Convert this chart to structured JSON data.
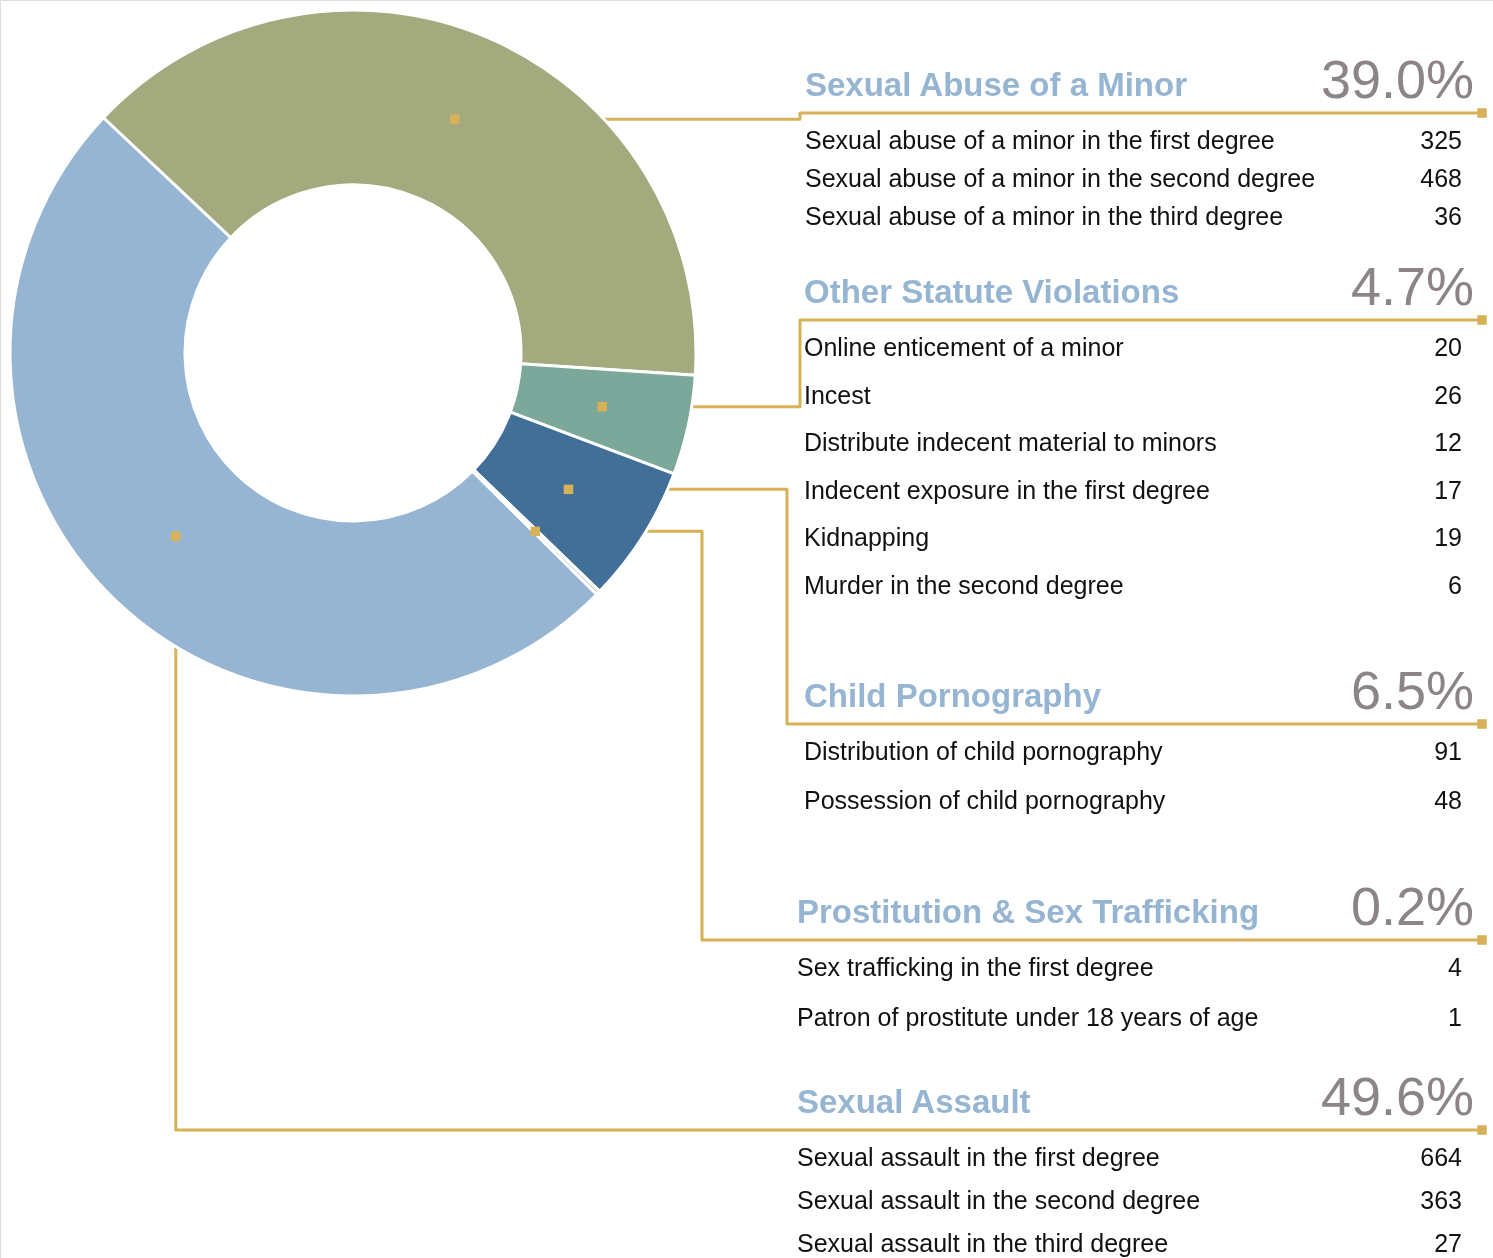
{
  "chart_data": {
    "type": "donut",
    "categories": [
      "Sexual Abuse of a Minor",
      "Other Statute Violations",
      "Child Pornography",
      "Prostitution & Sex Trafficking",
      "Sexual Assault"
    ],
    "values": [
      39.0,
      4.7,
      6.5,
      0.2,
      49.6
    ],
    "colors": [
      "#a3aa7e",
      "#7ba89b",
      "#416f97",
      "#c9c9c9",
      "#95b5d3"
    ],
    "value_labels": [
      "39.0%",
      "4.7%",
      "6.5%",
      "0.2%",
      "49.6%"
    ],
    "annotations": [
      "Sexual abuse of a minor in the first degree",
      "325",
      "Sexual abuse of a minor in the second degree",
      "468",
      "Sexual abuse of a minor in the third degree",
      "36",
      "Online enticement of a minor",
      "20",
      "Incest",
      "26",
      "Distribute indecent material to minors",
      "12",
      "Indecent exposure in the first degree",
      "17",
      "Kidnapping",
      "19",
      "Murder in the second degree",
      "6",
      "Distribution of child pornography",
      "91",
      "Possession of child pornography",
      "48",
      "Sex trafficking in the first degree",
      "4",
      "Patron of prostitute under 18 years of age",
      "1",
      "Sexual assault in the first degree",
      "664",
      "Sexual assault in the second degree",
      "363",
      "Sexual assault in the third degree",
      "27"
    ]
  }
}
